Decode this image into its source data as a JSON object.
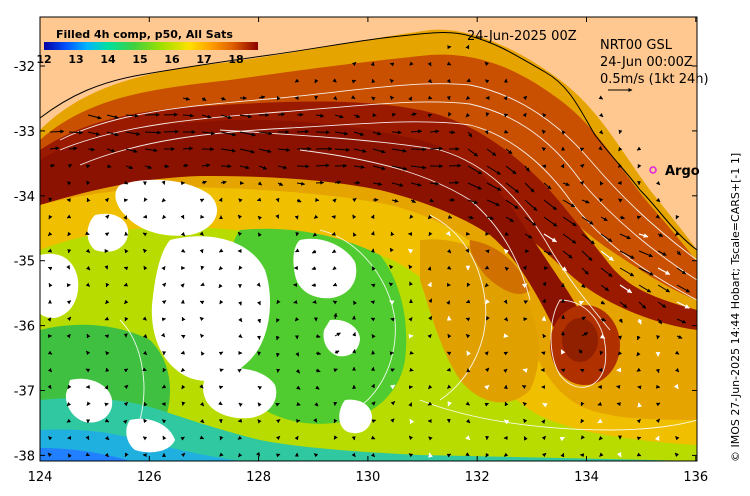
{
  "colorbar": {
    "title": "Filled 4h comp, p50, All Sats",
    "ticks": [
      "12",
      "13",
      "14",
      "15",
      "16",
      "17",
      "18"
    ],
    "colors": [
      "#0000a0",
      "#0050ff",
      "#00b4ff",
      "#00e0a0",
      "#40d040",
      "#a0e000",
      "#ffe000",
      "#ffa000",
      "#e06000",
      "#b02000",
      "#8b0000"
    ]
  },
  "date_title": "24-Jun-2025 00Z",
  "info": {
    "line1": "NRT00 GSL",
    "line2": "24-Jun 00:00Z",
    "line3": "0.5m/s (1kt 24h)"
  },
  "argo_label": "Argo",
  "side_text": "© IMOS 27-Jun-2025 14:44 Hobart; Tscale=CARS+[-1 1]",
  "x_ticks": [
    "124",
    "126",
    "128",
    "130",
    "132",
    "134",
    "136"
  ],
  "y_ticks": [
    "-32",
    "-33",
    "-34",
    "-35",
    "-36",
    "-37",
    "-38"
  ],
  "colors": {
    "land": "#ffc890",
    "nodata": "#ffffff"
  }
}
